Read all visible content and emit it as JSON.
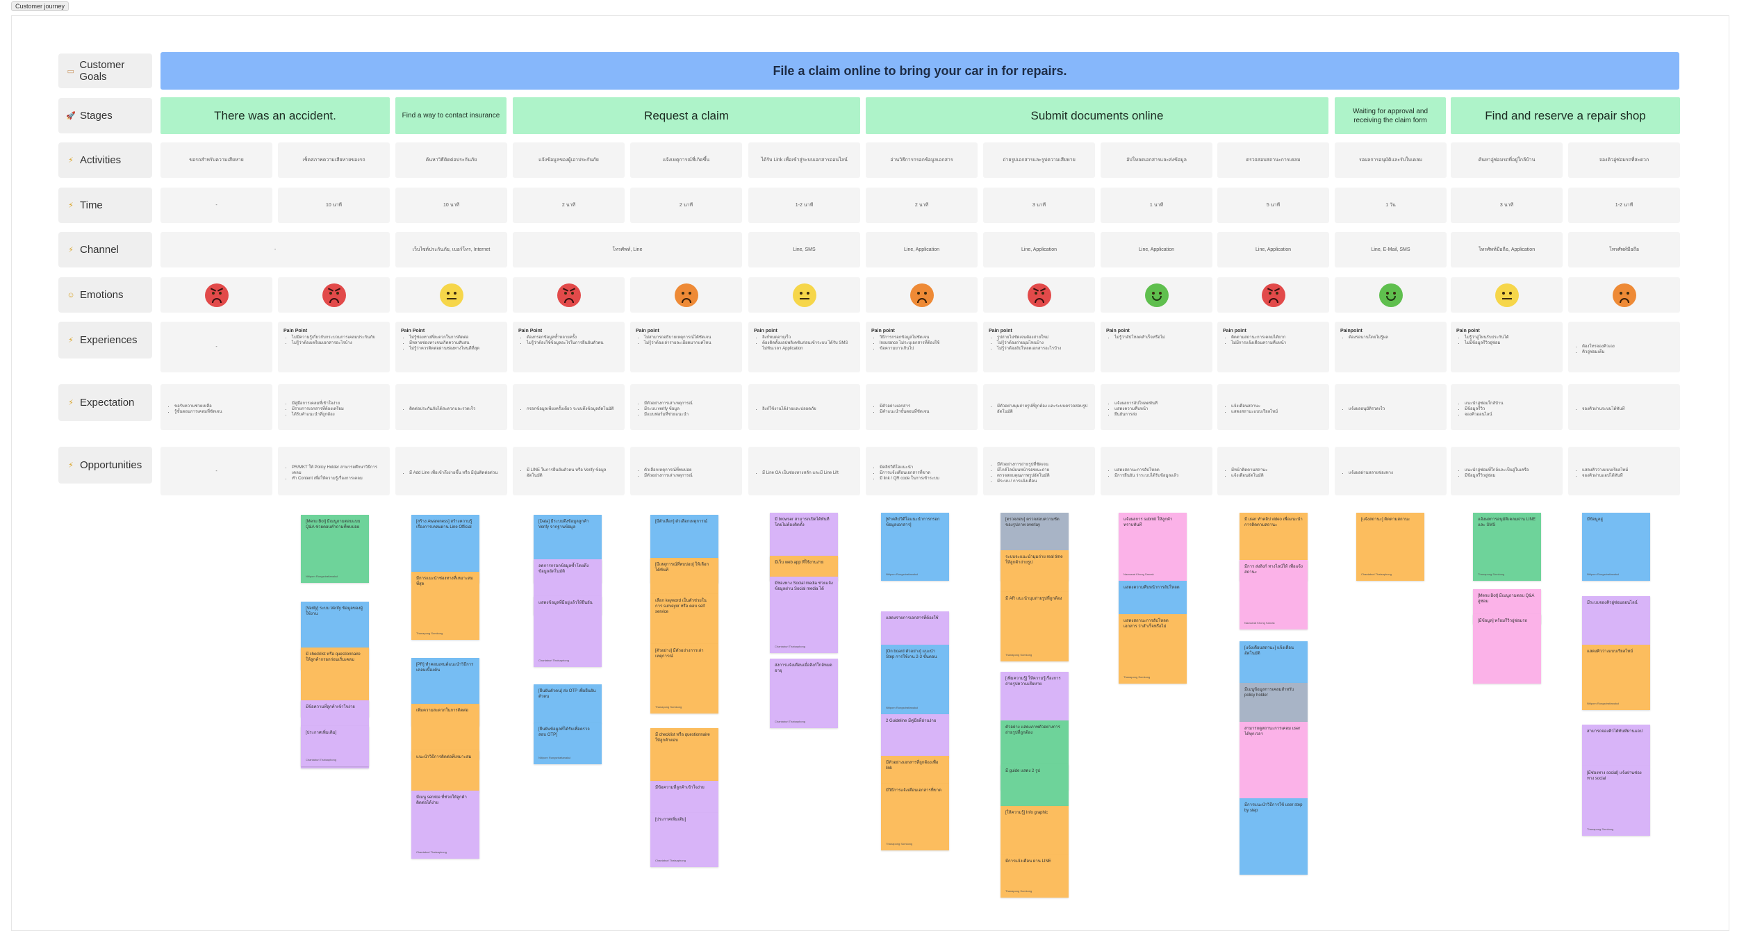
{
  "frame": {
    "label": "Customer journey"
  },
  "labels": {
    "goals": "Customer Goals",
    "stages": "Stages",
    "activities": "Activities",
    "time": "Time",
    "channel": "Channel",
    "emotions": "Emotions",
    "experiences": "Experiences",
    "expectation": "Expectation",
    "opportunities": "Opportunities"
  },
  "goal": "File a claim online to bring your car in for repairs.",
  "stages": [
    "There was an accident.",
    "Find a way to contact insurance",
    "Request a claim",
    "Submit documents online",
    "Waiting for approval and receiving the claim form",
    "Find and reserve a repair shop"
  ],
  "activities": [
    "ขอรถสำหรับความเสียหาย",
    "เช็คสภาพความเสียหายของรถ",
    "ค้นหาวิธีติดต่อประกันภัย",
    "แจ้งข้อมูลของผู้เอาประกันภัย",
    "แจ้งเหตุการณ์ที่เกิดขึ้น",
    "ได้รับ Link เพื่อเข้าสู่ระบบเอกสารออนไลน์",
    "อ่านวิธีการกรอกข้อมูลเอกสาร",
    "ถ่ายรูปเอกสารและรูปความเสียหาย",
    "อัปโหลดเอกสารและส่งข้อมูล",
    "ตรวจสอบสถานะการเคลม",
    "รอผลการอนุมัติและรับใบเคลม",
    "ค้นหาอู่ซ่อมรถที่อยู่ใกล้บ้าน",
    "จองคิวอู่ซ่อมรถที่สะดวก"
  ],
  "times": [
    "-",
    "10 นาที",
    "10 นาที",
    "2 นาที",
    "2 นาที",
    "1-2 นาที",
    "2 นาที",
    "3 นาที",
    "1 นาที",
    "5 นาที",
    "1 วัน",
    "3 นาที",
    "1-2 นาที"
  ],
  "channels": [
    "-",
    "เว็บไซต์ประกันภัย, เบอร์โทร, Internet",
    "โทรศัพท์, Line",
    "Line, SMS",
    "Line, Application",
    "Line, Application",
    "Line, Application",
    "Line, Application",
    "Line, E-Mail, SMS",
    "โทรศัพท์มือถือ, Application",
    "โทรศัพท์มือถือ"
  ],
  "emotions": [
    "red",
    "red",
    "yellow",
    "red",
    "orange",
    "yellow",
    "orange",
    "red",
    "green",
    "red",
    "green",
    "yellow",
    "orange"
  ],
  "experiences": [
    {
      "title": "",
      "items": [
        "-"
      ]
    },
    {
      "title": "Pain Point",
      "items": [
        "ไม่มีความรู้เกี่ยวกับกระบวนการเคลมประกันภัย",
        "ไม่รู้ว่าต้องเตรียมเอกสารอะไรบ้าง"
      ]
    },
    {
      "title": "Pain Point",
      "items": [
        "ไม่รู้ช่องทางที่สะดวกในการติดต่อ",
        "มีหลายช่องทางจนเกิดความสับสน",
        "ไม่รู้ว่าควรติดต่อผ่านช่องทางไหนดีที่สุด"
      ]
    },
    {
      "title": "Pain Point",
      "items": [
        "ต้องกรอกข้อมูลซ้ำหลายครั้ง",
        "ไม่รู้ว่าต้องใช้ข้อมูลอะไรในการยืนยันตัวตน"
      ]
    },
    {
      "title": "Pain point",
      "items": [
        "ไม่สามารถอธิบายเหตุการณ์ได้ชัดเจน",
        "ไม่รู้ว่าต้องเล่ารายละเอียดมากแค่ไหน"
      ]
    },
    {
      "title": "Pain point",
      "items": [
        "ลิงก์หมดอายุเร็ว",
        "ต้องติดตั้งแอปพลิเคชันก่อนเข้าระบบ ได้รับ SMS ไม่ทันเวลา Application"
      ]
    },
    {
      "title": "Pain point",
      "items": [
        "วิธีการกรอกข้อมูลไม่ชัดเจน",
        "Insurance ไม่ระบุเอกสารที่ต้องใช้",
        "ข้อความยาวเกินไป"
      ]
    },
    {
      "title": "Pain point",
      "items": [
        "รูปถ่ายไม่ชัดเจนต้องถ่ายใหม่",
        "ไม่รู้ว่าต้องถ่ายมุมไหนบ้าง",
        "ไม่รู้ว่าต้องอัปโหลดเอกสารอะไรบ้าง"
      ]
    },
    {
      "title": "Pain point",
      "items": [
        "ไม่รู้ว่าอัปโหลดสำเร็จหรือไม่"
      ]
    },
    {
      "title": "Pain point",
      "items": [
        "ติดตามสถานะการเคลมได้ยาก",
        "ไม่มีการแจ้งเตือนความคืบหน้า"
      ]
    },
    {
      "title": "Painpoint",
      "items": [
        "ต้องรอนานโดยไม่รู้ผล"
      ]
    },
    {
      "title": "Pain point",
      "items": [
        "ไม่รู้ว่าอู่ไหนรับประกันได้",
        "ไม่มีข้อมูลรีวิวอู่ซ่อม"
      ]
    },
    {
      "title": "",
      "items": [
        "ต้องโทรจองคิวเอง",
        "คิวอู่ซ่อมเต็ม"
      ]
    }
  ],
  "expectations": [
    [
      "ขอรับความช่วยเหลือ",
      "รู้ขั้นตอนการเคลมที่ชัดเจน"
    ],
    [
      "มีคู่มือการเคลมที่เข้าใจง่าย",
      "มีรายการเอกสารที่ต้องเตรียม",
      "ได้รับคำแนะนำที่ถูกต้อง"
    ],
    [
      "ติดต่อประกันภัยได้สะดวกและรวดเร็ว"
    ],
    [
      "กรอกข้อมูลเพียงครั้งเดียว ระบบดึงข้อมูลอัตโนมัติ"
    ],
    [
      "มีตัวอย่างการเล่าเหตุการณ์",
      "มีระบบ verify ข้อมูล",
      "มีแบบฟอร์มที่ช่วยแนะนำ"
    ],
    [
      "ลิงก์ใช้งานได้ง่ายและปลอดภัย"
    ],
    [
      "มีตัวอย่างเอกสาร",
      "มีคำแนะนำขั้นตอนที่ชัดเจน"
    ],
    [
      "มีตัวอย่างมุมถ่ายรูปที่ถูกต้อง และระบบตรวจสอบรูปอัตโนมัติ"
    ],
    [
      "แจ้งผลการอัปโหลดทันที",
      "แสดงความคืบหน้า",
      "ยืนยันการส่ง"
    ],
    [
      "แจ้งเตือนสถานะ",
      "แสดงสถานะแบบเรียลไทม์"
    ],
    [
      "แจ้งผลอนุมัติรวดเร็ว"
    ],
    [
      "แนะนำอู่ซ่อมใกล้บ้าน",
      "มีข้อมูลรีวิว",
      "จองคิวออนไลน์"
    ],
    [
      "จองคิวผ่านระบบได้ทันที"
    ]
  ],
  "opportunities": [
    [
      "-"
    ],
    [
      "PR/MKT ให้ Policy Holder สามารถศึกษาวิธีการเคลม",
      "ทำ Content เพื่อให้ความรู้เรื่องการเคลม"
    ],
    [
      "มี Add Line เพื่อเข้าถึงง่ายขึ้น หรือ มีปุ่มติดต่อด่วน"
    ],
    [
      "มี LINE ในการยืนยันตัวตน หรือ Verify ข้อมูลอัตโนมัติ"
    ],
    [
      "ตัวเลือกเหตุการณ์ที่พบบ่อย",
      "มีตัวอย่างการเล่าเหตุการณ์"
    ],
    [
      "มี Line OA เป็นช่องทางหลัก และมี Line Lift"
    ],
    [
      "มีคลิปวิดีโอแนะนำ",
      "มีการแจ้งเตือนเอกสารที่ขาด",
      "มี link / QR code ในการเข้าระบบ"
    ],
    [
      "มีตัวอย่างการถ่ายรูปที่ชัดเจน",
      "มีไกด์ไลน์บนหน้าจอขณะถ่าย",
      "ตรวจสอบคุณภาพรูปอัตโนมัติ",
      "มีระบบ / การแจ้งเตือน"
    ],
    [
      "แสดงสถานะการอัปโหลด",
      "มีการยืนยัน ว่าระบบได้รับข้อมูลแล้ว"
    ],
    [
      "มีหน้าติดตามสถานะ",
      "แจ้งเตือนอัตโนมัติ"
    ],
    [
      "แจ้งผลผ่านหลายช่องทาง"
    ],
    [
      "แนะนำอู่ซ่อมที่ใกล้และเป็นอู่ในเครือ",
      "มีข้อมูลรีวิวอู่ซ่อม"
    ],
    [
      "แสดงคิวว่างแบบเรียลไทม์",
      "จองคิวผ่านแอปได้ทันที"
    ]
  ],
  "stickies": [
    {
      "text": "[Menu Bot] มีเมนูถามตอบแบบ Q&A ช่วยตอบคำถามที่พบบ่อย",
      "author": "Nitiporn Rungsrirattanakul"
    },
    {
      "text": "[Verify] ระบบ Verify ข้อมูลของผู้ใช้งาน",
      "author": ""
    },
    {
      "text": "มี checklist หรือ questionnaire ให้ลูกค้ากรอกก่อนเริ่มเคลม",
      "author": ""
    },
    {
      "text": "มีข้อความที่ลูกค้าเข้าใจง่าย",
      "author": ""
    },
    {
      "text": "[ประกาศเพิ่มเติม]",
      "author": "Chantaburi Thatsaphong"
    },
    {
      "text": "[สร้าง Awareness] สร้างความรู้เรื่องการเคลมผ่าน Line Official",
      "author": ""
    },
    {
      "text": "มีการแนะนำช่องทางที่เหมาะสมที่สุด",
      "author": "Thanapong Somkong"
    },
    {
      "text": "[PR] ทำคอนเทนต์แนะนำวิธีการเคลมเบื้องต้น",
      "author": ""
    },
    {
      "text": "เพิ่มความสะดวกในการติดต่อ",
      "author": ""
    },
    {
      "text": "แนะนำวิธีการติดต่อที่เหมาะสม",
      "author": ""
    },
    {
      "text": "มีเมนู service ที่ช่วยให้ลูกค้าติดต่อได้ง่าย",
      "author": "Chantaburi Thatsaphong"
    },
    {
      "text": "[Data] มีระบบดึงข้อมูลลูกค้า Verify จากฐานข้อมูล",
      "author": ""
    },
    {
      "text": "ลดการกรอกข้อมูลซ้ำโดยดึงข้อมูลอัตโนมัติ",
      "author": ""
    },
    {
      "text": "แสดงข้อมูลที่มีอยู่แล้วให้ยืนยัน",
      "author": "Chantaburi Thatsaphong"
    },
    {
      "text": "[ยืนยันตัวตน] ส่ง OTP เพื่อยืนยันตัวตน",
      "author": ""
    },
    {
      "text": "[ยืนยันข้อมูลที่ได้รับเพื่อตรวจสอบ OTP]",
      "author": "Nitiporn Rungsrirattanakul"
    },
    {
      "text": "[มีตัวเลือก] ตัวเลือกเหตุการณ์",
      "author": ""
    },
    {
      "text": "[มีเหตุการณ์ที่พบบ่อย] ให้เลือกได้ทันที",
      "author": ""
    },
    {
      "text": "เลือก keyword เป็นตัวช่วยในการ surveyor หรือ ตอบ self service",
      "author": ""
    },
    {
      "text": "[ตัวอย่าง] มีตัวอย่างการเล่าเหตุการณ์",
      "author": "Thanapong Somkong"
    },
    {
      "text": "มี checklist หรือ questionnaire ให้ลูกค้าตอบ",
      "author": ""
    },
    {
      "text": "มีข้อความที่ลูกค้าเข้าใจง่าย",
      "author": ""
    },
    {
      "text": "[ประกาศเพิ่มเติม]",
      "author": "Chantaburi Thatsaphong"
    },
    {
      "text": "มี browser สามารถเปิดได้ทันทีโดยไม่ต้องติดตั้ง",
      "author": ""
    },
    {
      "text": "มีเว็บ web app ที่ใช้งานง่าย",
      "author": ""
    },
    {
      "text": "มีช่องทาง Social media ช่วยแจ้งข้อมูลผ่าน Social media ได้",
      "author": "Chantaburi Thatsaphong"
    },
    {
      "text": "ส่งการแจ้งเตือนเมื่อลิงก์ใกล้หมดอายุ",
      "author": "Chantaburi Thatsaphong"
    },
    {
      "text": "[ทำคลิปวิดีโอแนะนำการกรอกข้อมูลเอกสาร]",
      "author": "Nitiporn Rungsrirattanakul"
    },
    {
      "text": "แสดงรายการเอกสารที่ต้องใช้",
      "author": ""
    },
    {
      "text": "[On board ตัวอย่าง] แนะนำ Step การใช้งาน 2-3 ขั้นตอน",
      "author": "Nitiporn Rungsrirattanakul"
    },
    {
      "text": "2 Guideline มีคู่มือที่อ่านง่าย",
      "author": ""
    },
    {
      "text": "มีตัวอย่างเอกสารที่ถูกต้องเพื่อ link",
      "author": ""
    },
    {
      "text": "มีวิธีการแจ้งเตือนเอกสารที่ขาด",
      "author": "Thanapong Somkong"
    },
    {
      "text": "[ตรวจสอบ] ตรวจสอบความชัดของรูปภาพ overlay",
      "author": ""
    },
    {
      "text": "ระบบจะแนะนำมุมถ่าย real time ให้ลูกค้าถ่ายรูป",
      "author": ""
    },
    {
      "text": "มี AR แนะนำมุมถ่ายรูปที่ถูกต้อง",
      "author": "Thanapong Somkong"
    },
    {
      "text": "[เพิ่มความรู้] ให้ความรู้เรื่องการถ่ายรูปความเสียหาย",
      "author": ""
    },
    {
      "text": "ตัวอย่าง แสดงภาพตัวอย่างการถ่ายรูปที่ถูกต้อง",
      "author": ""
    },
    {
      "text": "มี guide แสดง 2 รูป",
      "author": ""
    },
    {
      "text": "[ให้ความรู้] Info graphic",
      "author": ""
    },
    {
      "text": "มีการแจ้งเตือน ผ่าน LINE",
      "author": "Thanapong Somkong"
    },
    {
      "text": "แจ้งผลการ submit ให้ลูกค้าทราบทันที",
      "author": "Naowarat Khong Sanrak"
    },
    {
      "text": "แสดงความคืบหน้าการอัปโหลด",
      "author": ""
    },
    {
      "text": "แสดงสถานะการอัปโหลดเอกสาร ว่าสำเร็จหรือไม่",
      "author": "Thanapong Somkong"
    },
    {
      "text": "มี user ทำคลิป video เพื่อแนะนำการติดตามสถานะ",
      "author": ""
    },
    {
      "text": "มีการ ส่งลิงก์ ทางไลน์ให้ เพื่อแจ้งสถานะ",
      "author": "Naowarat Khong Sanrak"
    },
    {
      "text": "[แจ้งเตือนสถานะ] แจ้งเตือนอัตโนมัติ",
      "author": ""
    },
    {
      "text": "มีเมนูข้อมูลการเคลมสำหรับ policy holder",
      "author": ""
    },
    {
      "text": "สามารถดูสถานะการเคลม user ได้ทุกเวลา",
      "author": ""
    },
    {
      "text": "มีการแนะนำวิธีการใช้ user step by step",
      "author": ""
    },
    {
      "text": "[แจ้งสถานะ] ติดตามสถานะ",
      "author": "Chantaburi Thatsaphong"
    },
    {
      "text": "แจ้งผลการอนุมัติเคลมผ่าน LINE และ SMS",
      "author": "Thanapong Somkong"
    },
    {
      "text": "[Menu Bot] มีเมนูถามตอบ Q&A อู่ซ่อม",
      "author": "Nitiporn Rungsrirattanakul"
    },
    {
      "text": "[มีข้อมูล] พร้อมรีวิวอู่ซ่อมรถ",
      "author": ""
    },
    {
      "text": "มีข้อมูลอู่",
      "author": "Nitiporn Rungsrirattanakul"
    },
    {
      "text": "มีระบบจองคิวอู่ซ่อมออนไลน์",
      "author": ""
    },
    {
      "text": "แสดงคิวว่างแบบเรียลไทม์",
      "author": "Nitiporn Rungsrirattanakul"
    },
    {
      "text": "สามารถจองคิวได้ทันทีผ่านแอป",
      "author": ""
    },
    {
      "text": "[มีช่องทาง social] แจ้งผ่านช่องทาง social",
      "author": "Thanapong Somkong"
    },
    {
      "text": "สามารถเลือกวันและเวลาที่สะดวกได้",
      "author": "Chantaburi Thatsaphong"
    }
  ],
  "colors": {
    "goal": "#86b7fb",
    "stage": "#aef3c9",
    "sticky_green": "#6ed39a",
    "sticky_blue": "#76bdf3",
    "sticky_orange": "#fcbd5e",
    "sticky_purple": "#d8b4f8",
    "sticky_pink": "#fbb2e8"
  }
}
